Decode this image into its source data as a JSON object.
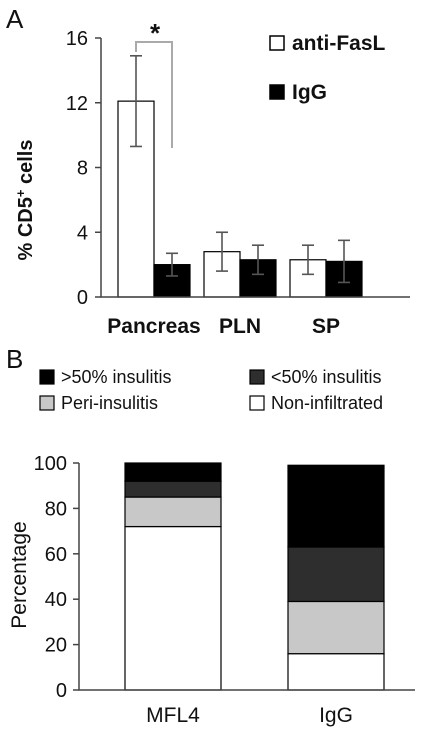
{
  "chart_data": [
    {
      "panel_label": "A",
      "type": "bar",
      "categories": [
        "Pancreas",
        "PLN",
        "SP"
      ],
      "series": [
        {
          "name": "anti-FasL",
          "color": "#ffffff",
          "values": [
            12.1,
            2.8,
            2.3
          ],
          "errors": [
            2.8,
            1.2,
            0.9
          ]
        },
        {
          "name": "IgG",
          "color": "#000000",
          "values": [
            2.0,
            2.3,
            2.2
          ],
          "errors": [
            0.7,
            0.9,
            1.3
          ]
        }
      ],
      "ylabel_main": "% CD5",
      "ylabel_sup": "+",
      "ylabel_tail": " cells",
      "ylim": [
        0,
        16
      ],
      "yticks": [
        "0",
        "4",
        "8",
        "12",
        "16"
      ],
      "significance": {
        "text": "*",
        "category": "Pancreas"
      },
      "legend_position": "top-right",
      "grid": false
    },
    {
      "panel_label": "B",
      "type": "bar",
      "stacked": true,
      "categories": [
        "MFL4",
        "IgG"
      ],
      "series": [
        {
          "name": "Non-infiltrated",
          "color": "#ffffff",
          "values": [
            72,
            16
          ]
        },
        {
          "name": "Peri-insulitis",
          "color": "#c8c8c8",
          "values": [
            13,
            23
          ]
        },
        {
          "name": "<50% insulitis",
          "color": "#2e2e2e",
          "values": [
            7,
            24
          ]
        },
        {
          "name": ">50% insulitis",
          "color": "#000000",
          "values": [
            8,
            36
          ]
        }
      ],
      "legend_order": [
        3,
        2,
        1,
        0
      ],
      "ylabel": "Percentage",
      "ylim": [
        0,
        100
      ],
      "yticks": [
        "0",
        "20",
        "40",
        "60",
        "80",
        "100"
      ],
      "legend_position": "top",
      "grid": false
    }
  ]
}
